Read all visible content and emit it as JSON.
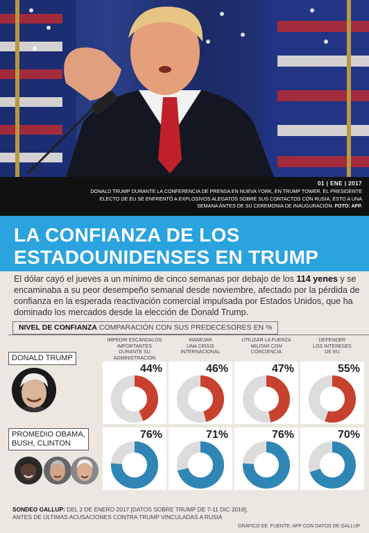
{
  "photo": {
    "description_icon": "photo-trump-press-conference"
  },
  "caption": {
    "date": "01 | ENE | 2017",
    "line1": "DONALD TRUMP DURANTE LA CONFERENCIA DE PRENSA EN NUEVA YORK, EN TRUMP TOWER. EL PRESIDENTE",
    "line2": "ELECTO DE EU SE ENFRENTÓ A EXPLOSIVOS ALEGATOS SOBRE SUS CONTACTOS CON RUSIA, ESTO A UNA",
    "line3": "SEMANA ANTES DE SU CEREMONIA DE INAUGURACIÓN.",
    "credit": "FOTO: AFP."
  },
  "title": {
    "line1": "LA CONFIANZA DE LOS",
    "line2": "ESTADOUNIDENSES EN TRUMP"
  },
  "intro": {
    "part1": "El dólar cayó el jueves a un mínimo de cinco semanas por debajo de los ",
    "bold": "114 yenes",
    "part2": " y se encaminaba a su peor desempeño semanal desde noviembre, afectado por la pérdida de confianza en la esperada reactivación comercial impulsada por Estados Unidos, que ha dominado los mercados desde la elección de Donald Trump."
  },
  "section": {
    "bold": "NIVEL DE CONFIANZA",
    "rest": " COMPARACIÓN CON SUS PREDECESORES EN %"
  },
  "rows": {
    "trump_label": "DONALD TRUMP",
    "predecessors_label_1": "PROMEDIO OBAMA,",
    "predecessors_label_2": "BUSH, CLINTON"
  },
  "footer": {
    "bold": "SONDEO GALLUP:",
    "line1": " DEL 2 DE ENERO 2017 [DATOS SOBRE TRUMP DE 7-11 DIC 2016],",
    "line2": "ANTES DE ÚLTIMAS ACUSACIONES CONTRA TRUMP VINCULADAS A RUSIA"
  },
  "source": "GRÁFICO EE. FUENTE: AFP CON DATOS DE GALLUP.",
  "colors": {
    "trump": "#c8412f",
    "predecessors": "#2f86b5",
    "ring_bg": "#dcdcdc",
    "accent": "#2aa3df"
  },
  "chart_data": {
    "type": "pie",
    "title": "NIVEL DE CONFIANZA",
    "subtitle": "COMPARACIÓN CON SUS PREDECESORES EN %",
    "categories": [
      "IMPEDIR ESCÁNDALOS IMPORTANTES DURANTE SU ADMINISTRACIÓN",
      "MANEJAR UNA CRISIS INTERNACIONAL",
      "UTILIZAR LA FUERZA MILITAR CON CONCIENCIA",
      "DEFENDER LOS INTERESES DE EU"
    ],
    "category_lines": [
      [
        "IMPEDIR ESCÁNDALOS",
        "IMPORTANTES",
        "DURANTE SU",
        "ADMINISTRACIÓN"
      ],
      [
        "MANEJAR",
        "UNA CRISIS",
        "INTERNACIONAL"
      ],
      [
        "UTILIZAR LA FUERZA",
        "MILITAR CON",
        "CONCIENCIA"
      ],
      [
        "DEFENDER",
        "LOS INTERESES",
        "DE EU"
      ]
    ],
    "series": [
      {
        "name": "DONALD TRUMP",
        "values": [
          44,
          46,
          47,
          55
        ],
        "labels": [
          "44%",
          "46%",
          "47%",
          "55%"
        ]
      },
      {
        "name": "PROMEDIO OBAMA, BUSH, CLINTON",
        "values": [
          76,
          71,
          76,
          70
        ],
        "labels": [
          "76%",
          "71%",
          "76%",
          "70%"
        ]
      }
    ]
  }
}
